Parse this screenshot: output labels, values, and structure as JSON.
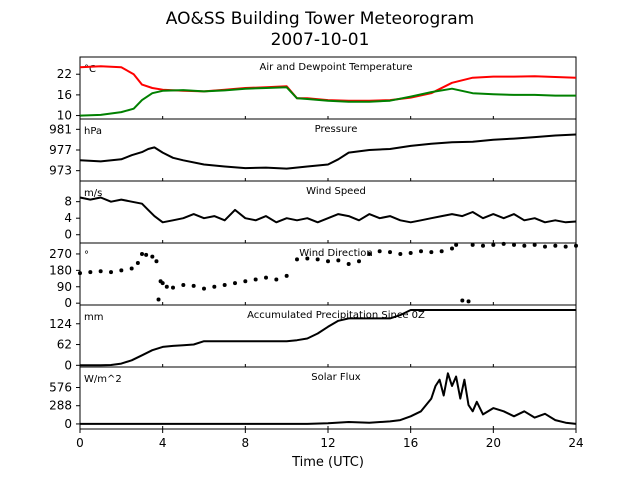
{
  "figure": {
    "title": "AO&SS Building Tower Meteorogram",
    "subtitle": "2007-10-01",
    "xlabel": "Time (UTC)"
  },
  "chart_data": [
    {
      "type": "line",
      "title": "Air and Dewpoint Temperature",
      "unit": "°C",
      "ylim": [
        9,
        27
      ],
      "yticks": [
        10,
        16,
        22
      ],
      "xlim": [
        0,
        24
      ],
      "series": [
        {
          "color": "#ff0000",
          "x": [
            0,
            1,
            2,
            2.6,
            3,
            3.5,
            4,
            5,
            6,
            7,
            8,
            9,
            10,
            10.5,
            11,
            12,
            13,
            14,
            15,
            16,
            17,
            18,
            19,
            20,
            21,
            22,
            23,
            24
          ],
          "y": [
            24,
            24.3,
            24,
            22,
            19,
            18,
            17.5,
            17.2,
            17,
            17.5,
            18,
            18.2,
            18.5,
            15,
            15,
            14.5,
            14.3,
            14.3,
            14.5,
            15.2,
            16.5,
            19.5,
            21,
            21.3,
            21.3,
            21.4,
            21.2,
            21
          ]
        },
        {
          "color": "#008000",
          "x": [
            0,
            1,
            2,
            2.6,
            3,
            3.5,
            4,
            5,
            6,
            7,
            8,
            9,
            10,
            10.5,
            11,
            12,
            13,
            14,
            15,
            16,
            17,
            18,
            19,
            20,
            21,
            22,
            23,
            24
          ],
          "y": [
            10,
            10.2,
            11,
            12,
            14.5,
            16.5,
            17.2,
            17.4,
            17,
            17.3,
            17.8,
            18,
            18.2,
            15,
            14.8,
            14.3,
            14,
            14,
            14.3,
            15.5,
            16.8,
            17.8,
            16.5,
            16.2,
            16,
            16,
            15.8,
            15.8
          ]
        }
      ]
    },
    {
      "type": "line",
      "title": "Pressure",
      "unit": "hPa",
      "ylim": [
        971,
        983
      ],
      "yticks": [
        973,
        977,
        981
      ],
      "xlim": [
        0,
        24
      ],
      "series": [
        {
          "color": "#000000",
          "x": [
            0,
            1,
            2,
            2.5,
            3,
            3.3,
            3.6,
            4,
            4.5,
            5,
            6,
            7,
            8,
            9,
            10,
            11,
            12,
            12.5,
            13,
            14,
            15,
            16,
            17,
            18,
            19,
            20,
            21,
            22,
            23,
            24
          ],
          "y": [
            975,
            974.8,
            975.2,
            976,
            976.6,
            977.2,
            977.5,
            976.5,
            975.5,
            975,
            974.2,
            973.8,
            973.5,
            973.6,
            973.4,
            973.8,
            974.2,
            975.2,
            976.5,
            977,
            977.2,
            977.8,
            978.2,
            978.5,
            978.6,
            979,
            979.2,
            979.5,
            979.8,
            980
          ]
        }
      ]
    },
    {
      "type": "line",
      "title": "Wind Speed",
      "unit": "m/s",
      "ylim": [
        -2,
        13
      ],
      "yticks": [
        0,
        4,
        8
      ],
      "xlim": [
        0,
        24
      ],
      "series": [
        {
          "color": "#000000",
          "x": [
            0,
            0.5,
            1,
            1.5,
            2,
            2.5,
            3,
            3.3,
            3.6,
            4,
            4.5,
            5,
            5.5,
            6,
            6.5,
            7,
            7.5,
            8,
            8.5,
            9,
            9.5,
            10,
            10.5,
            11,
            11.5,
            12,
            12.5,
            13,
            13.5,
            14,
            14.5,
            15,
            15.5,
            16,
            16.5,
            17,
            17.5,
            18,
            18.5,
            19,
            19.5,
            20,
            20.5,
            21,
            21.5,
            22,
            22.5,
            23,
            23.5,
            24
          ],
          "y": [
            9,
            8.5,
            9,
            8,
            8.5,
            8,
            7.5,
            6,
            4.5,
            3,
            3.5,
            4,
            5,
            4,
            4.5,
            3.5,
            6,
            4,
            3.5,
            4.5,
            3,
            4,
            3.5,
            4,
            3,
            4,
            5,
            4.5,
            3.5,
            5,
            4,
            4.5,
            3.5,
            3,
            3.5,
            4,
            4.5,
            5,
            4.5,
            5.5,
            4,
            5,
            4,
            5,
            3.5,
            4,
            3,
            3.5,
            3,
            3.2
          ]
        }
      ]
    },
    {
      "type": "scatter",
      "title": "Wind Direction",
      "unit": "°",
      "ylim": [
        -10,
        330
      ],
      "yticks": [
        0,
        90,
        180,
        270
      ],
      "xlim": [
        0,
        24
      ],
      "series": [
        {
          "color": "#000000",
          "x": [
            0,
            0.5,
            1,
            1.5,
            2,
            2.5,
            2.8,
            3,
            3.2,
            3.5,
            3.7,
            3.8,
            3.9,
            4,
            4.2,
            4.5,
            5,
            5.5,
            6,
            6.5,
            7,
            7.5,
            8,
            8.5,
            9,
            9.5,
            10,
            10.5,
            11,
            11.5,
            12,
            12.5,
            13,
            13.5,
            14,
            14.5,
            15,
            15.5,
            16,
            16.5,
            17,
            17.5,
            18,
            18.2,
            18.5,
            18.8,
            19,
            19.5,
            20,
            20.5,
            21,
            21.5,
            22,
            22.5,
            23,
            23.5,
            24
          ],
          "y": [
            165,
            170,
            175,
            170,
            180,
            190,
            220,
            270,
            265,
            255,
            230,
            20,
            120,
            110,
            90,
            85,
            100,
            95,
            80,
            90,
            100,
            110,
            120,
            130,
            140,
            130,
            150,
            240,
            245,
            240,
            230,
            235,
            215,
            230,
            270,
            285,
            280,
            270,
            275,
            285,
            280,
            285,
            300,
            320,
            15,
            10,
            320,
            315,
            320,
            325,
            320,
            315,
            320,
            310,
            315,
            310,
            315
          ]
        }
      ]
    },
    {
      "type": "line",
      "title": "Accumulated Precipitation Since 0Z",
      "unit": "mm",
      "ylim": [
        -5,
        180
      ],
      "yticks": [
        0,
        62,
        124
      ],
      "xlim": [
        0,
        24
      ],
      "series": [
        {
          "color": "#000000",
          "x": [
            0,
            1,
            1.5,
            2,
            2.5,
            3,
            3.5,
            4,
            4.5,
            5,
            5.5,
            6,
            7,
            8,
            9,
            10,
            10.5,
            11,
            11.5,
            12,
            12.5,
            13,
            14,
            15,
            15.5,
            16,
            17,
            18,
            20,
            22,
            24
          ],
          "y": [
            0,
            0,
            1,
            5,
            15,
            30,
            45,
            55,
            58,
            60,
            62,
            72,
            72,
            72,
            72,
            72,
            75,
            80,
            95,
            115,
            133,
            140,
            140,
            140,
            150,
            165,
            165,
            165,
            165,
            165,
            165
          ]
        }
      ]
    },
    {
      "type": "line",
      "title": "Solar Flux",
      "unit": "W/m^2",
      "ylim": [
        -80,
        900
      ],
      "yticks": [
        0,
        288,
        576
      ],
      "xlim": [
        0,
        24
      ],
      "series": [
        {
          "color": "#000000",
          "x": [
            0,
            4,
            8,
            11,
            12,
            13,
            14,
            15,
            15.5,
            16,
            16.5,
            17,
            17.2,
            17.4,
            17.6,
            17.8,
            18,
            18.2,
            18.4,
            18.6,
            18.8,
            19,
            19.2,
            19.5,
            20,
            20.5,
            21,
            21.5,
            22,
            22.5,
            23,
            23.5,
            24
          ],
          "y": [
            0,
            0,
            0,
            0,
            10,
            30,
            20,
            40,
            60,
            120,
            200,
            400,
            600,
            700,
            450,
            800,
            600,
            750,
            400,
            700,
            300,
            200,
            350,
            150,
            250,
            200,
            120,
            200,
            100,
            160,
            60,
            20,
            0
          ]
        }
      ]
    }
  ]
}
